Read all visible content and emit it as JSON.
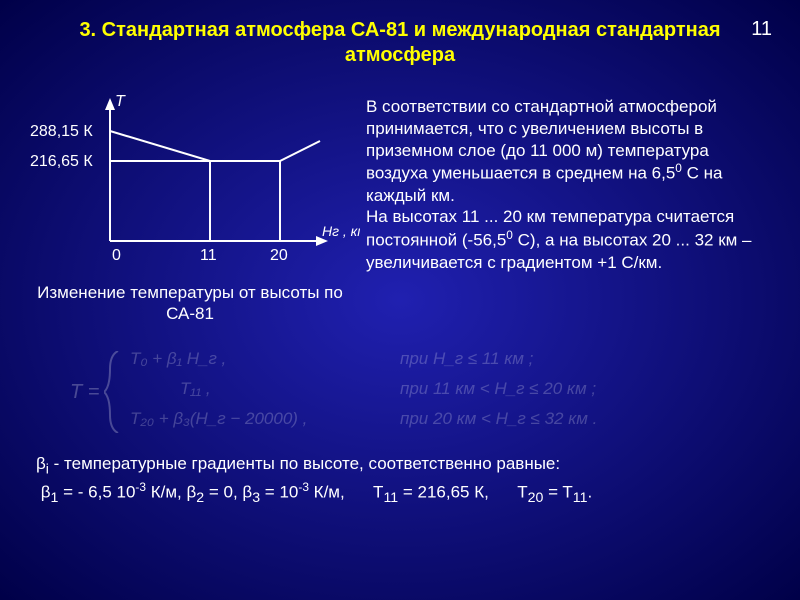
{
  "pagenum": "11",
  "title": "3. Стандартная атмосфера СА-81 и международная стандартная атмосфера",
  "chart": {
    "y_axis_label": "T",
    "x_axis_label": "Нг , км",
    "y_ticks": [
      "288,15 К",
      "216,65 К"
    ],
    "x_ticks": [
      "0",
      "11",
      "20"
    ],
    "caption": "Изменение температуры от высоты по СА-81",
    "colors": {
      "axis": "#ffffff",
      "line": "#ffffff"
    }
  },
  "paragraph_html": "В соответствии со стандартной атмосферой  принимается,  что с увеличением высоты в приземном слое  (до 11 000 м)  температура воздуха уменьшается в среднем на 6,5<sup>0</sup> С  на каждый км.<br>На высотах 11 ... 20 км температура считается постоянной (-56,5<sup>0</sup> С), а на высотах 20 ... 32 км – увеличивается с градиентом +1 С/км.",
  "formula": {
    "lhs": "T =",
    "rows": [
      {
        "expr": "T₀ + β₁ H_г ,",
        "cond": "при  H_г ≤ 11 км ;"
      },
      {
        "expr": "T₁₁ ,",
        "cond": "при  11 км < H_г ≤ 20 км ;"
      },
      {
        "expr": "T₂₀ + β₃(H_г − 20000) ,",
        "cond": "при  20 км < H_г ≤ 32 км ."
      }
    ]
  },
  "footer_html": "β<sub>i</sub> - температурные градиенты по высоте, соответственно равные:<br>&nbsp;β<sub>1</sub> =  - 6,5 10<sup>-3</sup> К/м, β<sub>2</sub> = 0, β<sub>3</sub> = 10<sup>-3</sup> К/м, &nbsp;&nbsp;&nbsp;&nbsp; T<sub>11</sub> = 216,65 К, &nbsp;&nbsp;&nbsp;&nbsp; T<sub>20</sub> = T<sub>11</sub>."
}
